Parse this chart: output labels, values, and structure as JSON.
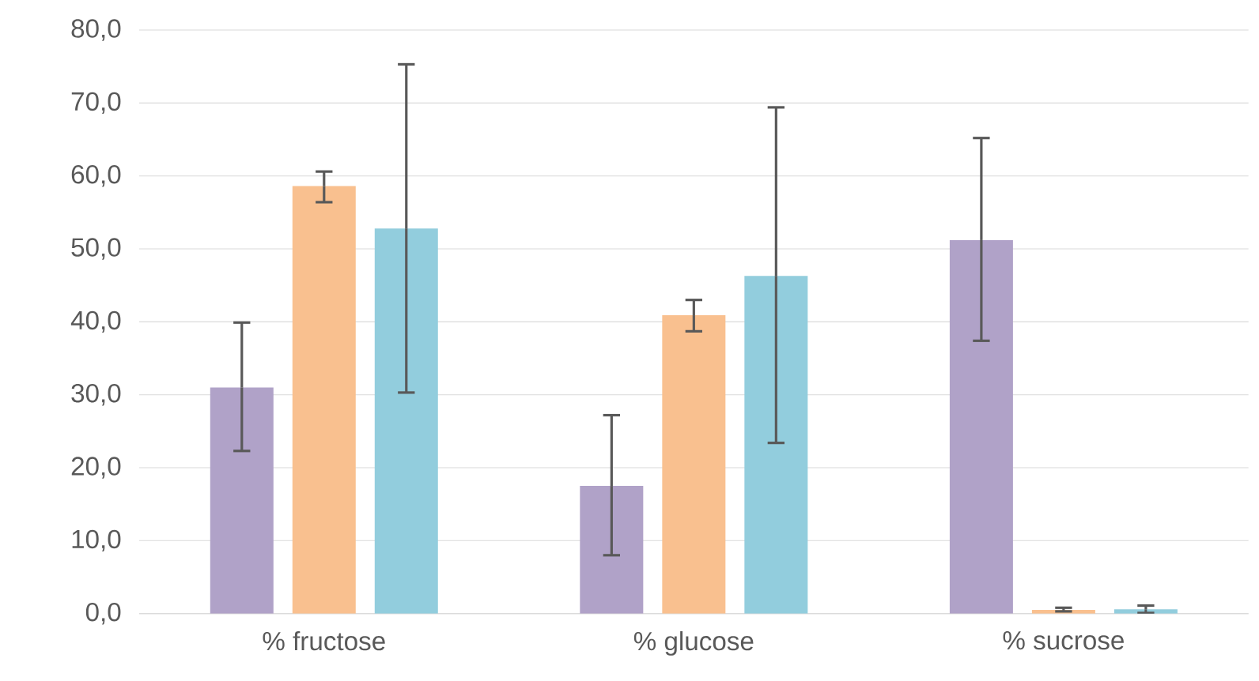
{
  "chart_data": {
    "type": "bar",
    "categories": [
      "% fructose",
      "% glucose",
      "% sucrose"
    ],
    "series": [
      {
        "color": "#b0a2c8",
        "values": [
          31.0,
          17.5,
          51.2
        ],
        "errors": [
          [
            22.3,
            39.9
          ],
          [
            8.0,
            27.2
          ],
          [
            37.4,
            65.2
          ]
        ]
      },
      {
        "color": "#f9c08f",
        "values": [
          58.6,
          40.9,
          0.5
        ],
        "errors": [
          [
            56.4,
            60.6
          ],
          [
            38.7,
            43.0
          ],
          [
            0.3,
            0.8
          ]
        ]
      },
      {
        "color": "#92cddd",
        "values": [
          52.8,
          46.3,
          0.6
        ],
        "errors": [
          [
            30.3,
            75.3
          ],
          [
            23.4,
            69.4
          ],
          0.5
        ]
      }
    ],
    "ylim": [
      0,
      80
    ],
    "yticks": [
      {
        "value": 0,
        "label": "0,0"
      },
      {
        "value": 10,
        "label": "10,0"
      },
      {
        "value": 20,
        "label": "20,0"
      },
      {
        "value": 30,
        "label": "30,0"
      },
      {
        "value": 40,
        "label": "40,0"
      },
      {
        "value": 50,
        "label": "50,0"
      },
      {
        "value": 60,
        "label": "60,0"
      },
      {
        "value": 70,
        "label": "70,0"
      },
      {
        "value": 80,
        "label": "80,0"
      }
    ],
    "grid": "y"
  }
}
